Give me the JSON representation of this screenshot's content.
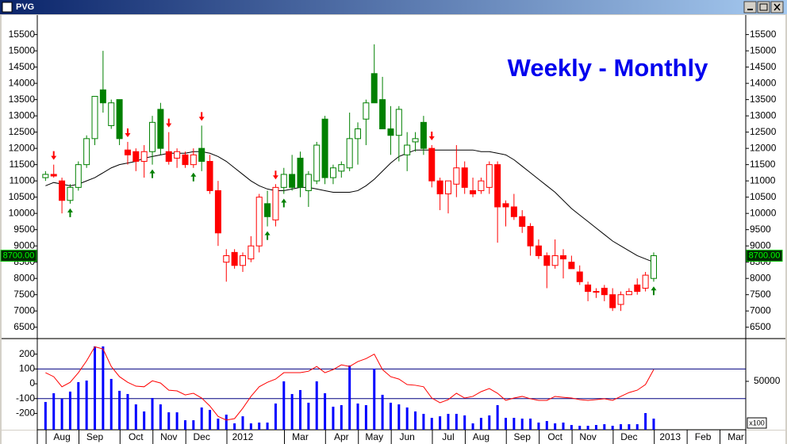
{
  "window_title": "PVG",
  "chart_data": [
    {
      "type": "candlestick",
      "annotation": "Weekly - Monthly",
      "annotation_color": "#0000ee",
      "xlim": [
        -1,
        85.2
      ],
      "ylim": [
        6200,
        16100
      ],
      "yticks": [
        6500,
        7000,
        7500,
        8000,
        8500,
        9000,
        9500,
        10000,
        10500,
        11000,
        11500,
        12000,
        12500,
        13000,
        13500,
        14000,
        14500,
        15000,
        15500
      ],
      "open": [
        11100,
        11200,
        11000,
        10400,
        10800,
        11500,
        12300,
        13800,
        12700,
        13500,
        11950,
        11900,
        11600,
        11900,
        13200,
        11900,
        11700,
        11800,
        11500,
        12000,
        11600,
        10700,
        8500,
        8800,
        8400,
        8600,
        9000,
        10300,
        9800,
        10800,
        11200,
        11700,
        10700,
        11000,
        12900,
        11100,
        11300,
        11400,
        12300,
        12900,
        14300,
        13500,
        12600,
        12400,
        11800,
        12200,
        12800,
        12000,
        11000,
        10600,
        10900,
        11400,
        10700,
        10700,
        10800,
        11500,
        10300,
        10200,
        9900,
        9600,
        9000,
        8700,
        8400,
        8700,
        8500,
        8200,
        7800,
        7600,
        7700,
        7500,
        7200,
        7500,
        7800,
        7700,
        8000
      ],
      "high": [
        11300,
        11500,
        11100,
        10900,
        11600,
        12400,
        13600,
        15000,
        13500,
        13500,
        12200,
        12000,
        12100,
        13000,
        13400,
        12500,
        12000,
        11900,
        12000,
        12700,
        11800,
        11000,
        8900,
        8900,
        8800,
        9300,
        10600,
        10700,
        10900,
        11400,
        11800,
        11900,
        11300,
        12200,
        13000,
        11500,
        11600,
        13100,
        12800,
        13500,
        15200,
        14200,
        13300,
        13300,
        12500,
        12500,
        13000,
        12100,
        11100,
        11000,
        12100,
        11600,
        11100,
        11100,
        11600,
        11600,
        10400,
        10600,
        10100,
        9700,
        9200,
        8800,
        9200,
        8900,
        8700,
        8400,
        7900,
        7700,
        7800,
        7700,
        7600,
        7700,
        8000,
        8200,
        8800
      ],
      "low": [
        11000,
        11100,
        10000,
        10300,
        10700,
        11400,
        12100,
        13100,
        12600,
        12100,
        11500,
        11300,
        11100,
        11500,
        11800,
        11500,
        11400,
        11400,
        11400,
        11300,
        10600,
        9000,
        7900,
        8300,
        8200,
        8500,
        8800,
        9600,
        9600,
        10600,
        10700,
        10500,
        10200,
        10900,
        10900,
        10900,
        11100,
        11300,
        11500,
        12100,
        13400,
        12600,
        11800,
        11600,
        11300,
        11900,
        11800,
        10800,
        10100,
        10000,
        10500,
        10600,
        10500,
        10600,
        10600,
        9100,
        9600,
        9800,
        9400,
        8700,
        8600,
        7700,
        8300,
        8000,
        8300,
        7800,
        7300,
        7400,
        7300,
        7000,
        7000,
        7500,
        7500,
        7600,
        7900
      ],
      "close": [
        11200,
        11150,
        10400,
        10800,
        11500,
        12300,
        13600,
        13400,
        13400,
        12300,
        11800,
        11600,
        11900,
        12800,
        12000,
        11600,
        11900,
        11500,
        11800,
        11600,
        10700,
        9400,
        8700,
        8400,
        8700,
        9000,
        10500,
        9900,
        10800,
        11200,
        10800,
        10800,
        11200,
        12100,
        11100,
        11400,
        11500,
        12300,
        12600,
        13400,
        13400,
        12600,
        12400,
        13200,
        12100,
        12300,
        12000,
        11000,
        10600,
        11000,
        11400,
        10800,
        10600,
        11000,
        11500,
        10200,
        10200,
        9900,
        9600,
        9000,
        8700,
        8400,
        8700,
        8600,
        8300,
        7900,
        7600,
        7600,
        7500,
        7100,
        7500,
        7600,
        7600,
        8100,
        8700
      ],
      "colors": [
        "#008000",
        "#ff0000",
        "#ff0000",
        "#008000",
        "#008000",
        "#008000",
        "#008000",
        "#008000",
        "#008000",
        "#008000",
        "#ff0000",
        "#ff0000",
        "#ff0000",
        "#008000",
        "#008000",
        "#ff0000",
        "#ff0000",
        "#ff0000",
        "#ff0000",
        "#008000",
        "#ff0000",
        "#ff0000",
        "#ff0000",
        "#ff0000",
        "#ff0000",
        "#ff0000",
        "#ff0000",
        "#008000",
        "#ff0000",
        "#008000",
        "#008000",
        "#008000",
        "#008000",
        "#008000",
        "#008000",
        "#008000",
        "#008000",
        "#008000",
        "#008000",
        "#008000",
        "#008000",
        "#008000",
        "#008000",
        "#008000",
        "#008000",
        "#008000",
        "#008000",
        "#ff0000",
        "#ff0000",
        "#ff0000",
        "#ff0000",
        "#ff0000",
        "#ff0000",
        "#ff0000",
        "#ff0000",
        "#ff0000",
        "#ff0000",
        "#ff0000",
        "#ff0000",
        "#ff0000",
        "#ff0000",
        "#ff0000",
        "#ff0000",
        "#ff0000",
        "#ff0000",
        "#ff0000",
        "#ff0000",
        "#ff0000",
        "#ff0000",
        "#ff0000",
        "#ff0000",
        "#ff0000",
        "#ff0000",
        "#ff0000",
        "#008000"
      ],
      "ma": {
        "color": "#000000",
        "values": [
          10850,
          10950,
          10900,
          10850,
          10900,
          11000,
          11100,
          11250,
          11400,
          11500,
          11550,
          11600,
          11700,
          11750,
          11800,
          11850,
          11850,
          11850,
          11900,
          11900,
          11850,
          11750,
          11600,
          11400,
          11200,
          11000,
          10850,
          10750,
          10700,
          10700,
          10750,
          10800,
          10800,
          10750,
          10700,
          10650,
          10650,
          10650,
          10700,
          10850,
          11050,
          11300,
          11550,
          11750,
          11850,
          11950,
          11950,
          11950,
          11950,
          11950,
          11950,
          11950,
          11950,
          11900,
          11900,
          11850,
          11800,
          11650,
          11450,
          11250,
          11050,
          10850,
          10650,
          10400,
          10150,
          9950,
          9750,
          9550,
          9350,
          9150,
          9000,
          8850,
          8700,
          8600,
          8500
        ]
      },
      "buy_signals": [
        3,
        13,
        18,
        27,
        29,
        74
      ],
      "buy_color": "#008000",
      "sell_signals": [
        1,
        10,
        15,
        19,
        28,
        47
      ],
      "sell_color": "#ff0000",
      "last_price": {
        "value": 8700,
        "label": "8700.00"
      }
    },
    {
      "type": "indicator",
      "xlim": [
        -1,
        85.2
      ],
      "xticks": [
        {
          "value": 2,
          "label": "Aug"
        },
        {
          "value": 6,
          "label": "Sep"
        },
        {
          "value": 11,
          "label": "Oct"
        },
        {
          "value": 15,
          "label": "Nov"
        },
        {
          "value": 19,
          "label": "Dec"
        },
        {
          "value": 24,
          "label": "2012"
        },
        {
          "value": 31,
          "label": "Mar"
        },
        {
          "value": 36,
          "label": "Apr"
        },
        {
          "value": 40,
          "label": "May"
        },
        {
          "value": 44,
          "label": "Jun"
        },
        {
          "value": 49,
          "label": "Jul"
        },
        {
          "value": 53,
          "label": "Aug"
        },
        {
          "value": 58,
          "label": "Sep"
        },
        {
          "value": 62,
          "label": "Oct"
        },
        {
          "value": 66,
          "label": "Nov"
        },
        {
          "value": 71,
          "label": "Dec"
        },
        {
          "value": 76,
          "label": "2013"
        },
        {
          "value": 80,
          "label": "Feb"
        },
        {
          "value": 84,
          "label": "Mar"
        }
      ],
      "ylim": [
        -310,
        300
      ],
      "yticks": [
        -200,
        -100,
        0,
        100,
        200
      ],
      "y2lim": [
        0,
        93400
      ],
      "y2ticks": [
        50000
      ],
      "y2_unit": "x100",
      "hlines": [
        100,
        -100
      ],
      "hline_color": "#000080",
      "series": [
        {
          "style": "bar",
          "axis": "y2",
          "color": "#0000ff",
          "values": [
            28700,
            37700,
            32000,
            39400,
            49200,
            50800,
            86100,
            86100,
            52500,
            40200,
            36900,
            26200,
            18900,
            32800,
            26200,
            18000,
            18000,
            9800,
            9800,
            23000,
            20500,
            11500,
            15600,
            6600,
            13900,
            6600,
            7400,
            7400,
            27100,
            50000,
            36900,
            41000,
            27900,
            50000,
            37700,
            23800,
            25400,
            66400,
            27100,
            25400,
            63100,
            36100,
            27900,
            26200,
            23000,
            18900,
            16400,
            12300,
            13900,
            16400,
            16400,
            14800,
            6600,
            12300,
            14800,
            25400,
            12300,
            12300,
            11500,
            11500,
            7400,
            9000,
            6600,
            7400,
            4900,
            4100,
            4100,
            4900,
            5700,
            4100,
            5700,
            5700,
            5700,
            17200,
            11500
          ]
        },
        {
          "style": "line",
          "color": "#ff0000",
          "values": [
            75,
            48,
            -20,
            10,
            75,
            155,
            250,
            235,
            117,
            48,
            10,
            -16,
            -20,
            20,
            5,
            -43,
            -48,
            -75,
            -64,
            -96,
            -150,
            -220,
            -245,
            -235,
            -165,
            -85,
            -20,
            10,
            32,
            75,
            75,
            75,
            85,
            117,
            75,
            96,
            128,
            117,
            150,
            170,
            200,
            96,
            48,
            32,
            -5,
            -10,
            -20,
            -96,
            -128,
            -107,
            -64,
            -96,
            -85,
            -53,
            -32,
            -64,
            -112,
            -96,
            -85,
            -101,
            -112,
            -112,
            -85,
            -91,
            -96,
            -107,
            -112,
            -107,
            -101,
            -112,
            -85,
            -59,
            -43,
            -5,
            96
          ]
        }
      ]
    }
  ]
}
